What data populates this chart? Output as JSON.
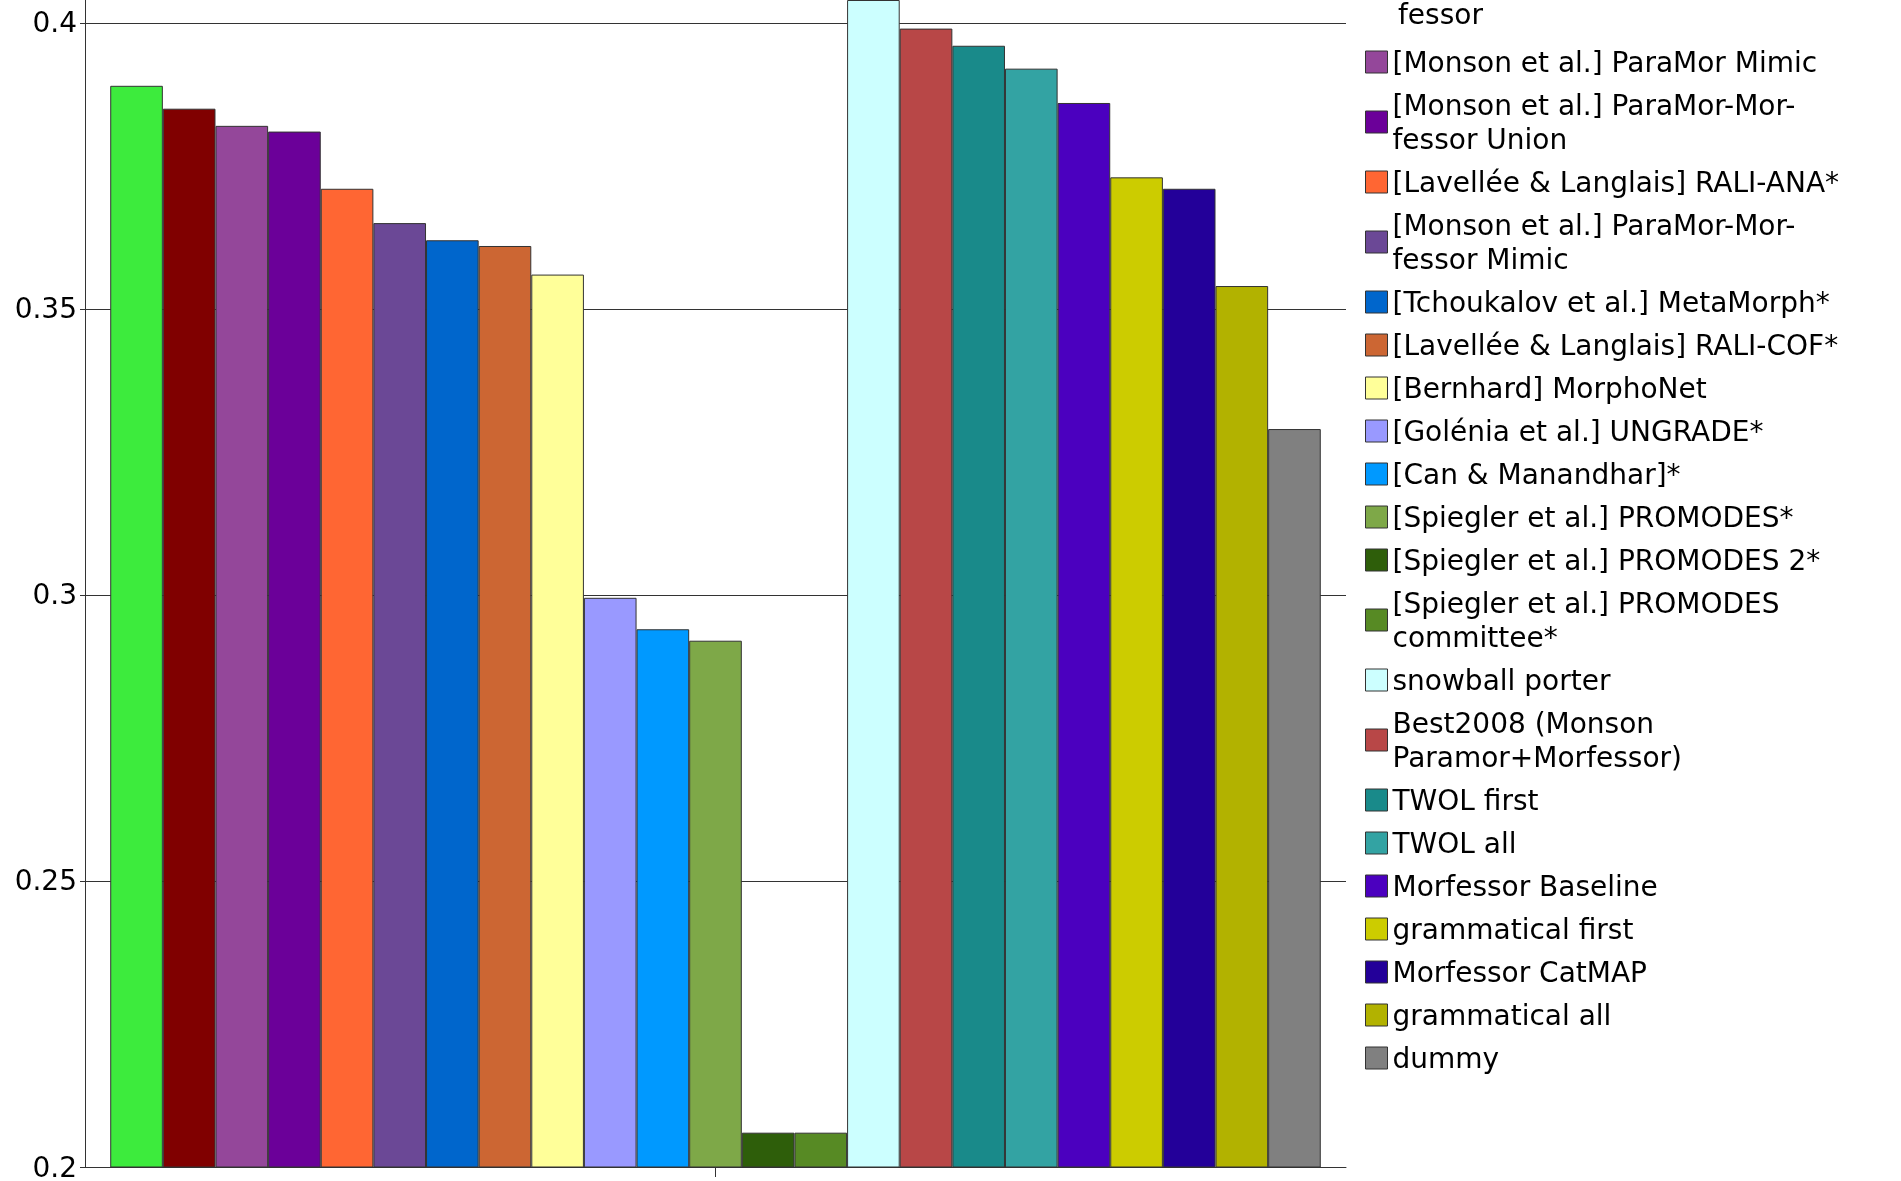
{
  "chart_data": {
    "type": "bar",
    "categories": [
      null
    ],
    "ylim": [
      0.2,
      0.404
    ],
    "yticks": [
      0.2,
      0.25,
      0.3,
      0.35,
      0.4
    ],
    "grid": "y",
    "tick_labels": "y",
    "legend": "right",
    "annotations": [
      "fessor"
    ],
    "series": [
      {
        "color": "#3deb3d",
        "values": [
          0.389
        ]
      },
      {
        "color": "#800000",
        "values": [
          0.385
        ]
      },
      {
        "name": "[Monson et al.] ParaMor Mimic",
        "color": "#94479a",
        "values": [
          0.382
        ]
      },
      {
        "name": "[Monson et al.] ParaMor-Mor-\nfessor Union",
        "color": "#6b0099",
        "values": [
          0.381
        ]
      },
      {
        "name": "[Lavellée & Langlais] RALI-ANA*",
        "color": "#ff6633",
        "values": [
          0.371
        ]
      },
      {
        "name": "[Monson et al.] ParaMor-Mor-\nfessor Mimic",
        "color": "#6b4896",
        "values": [
          0.365
        ]
      },
      {
        "name": "[Tchoukalov et al.] MetaMorph*",
        "color": "#0066cc",
        "values": [
          0.362
        ]
      },
      {
        "name": "[Lavellée & Langlais] RALI-COF*",
        "color": "#cc6633",
        "values": [
          0.361
        ]
      },
      {
        "name": "[Bernhard] MorphoNet",
        "color": "#ffff99",
        "values": [
          0.356
        ]
      },
      {
        "name": "[Golénia et al.] UNGRADE*",
        "color": "#9999ff",
        "values": [
          0.2995
        ]
      },
      {
        "name": "[Can & Manandhar]*",
        "color": "#0099ff",
        "values": [
          0.294
        ]
      },
      {
        "name": "[Spiegler et al.] PROMODES*",
        "color": "#7ea848",
        "values": [
          0.292
        ]
      },
      {
        "name": "[Spiegler et al.] PROMODES 2*",
        "color": "#2e5e0a",
        "values": [
          0.206
        ]
      },
      {
        "name": "[Spiegler et al.] PROMODES\ncommittee*",
        "color": "#578a24",
        "values": [
          0.206
        ]
      },
      {
        "name": "snowball porter",
        "color": "#ccffff",
        "values": [
          0.404
        ]
      },
      {
        "name": "Best2008 (Monson\nParamor+Morfessor)",
        "color": "#b84747",
        "values": [
          0.399
        ]
      },
      {
        "name": "TWOL first",
        "color": "#198a8a",
        "values": [
          0.396
        ]
      },
      {
        "name": "TWOL all",
        "color": "#33a3a3",
        "values": [
          0.392
        ]
      },
      {
        "name": "Morfessor Baseline",
        "color": "#4b00bf",
        "values": [
          0.386
        ]
      },
      {
        "name": "grammatical first",
        "color": "#cccc00",
        "values": [
          0.373
        ]
      },
      {
        "name": "Morfessor CatMAP",
        "color": "#230099",
        "values": [
          0.371
        ]
      },
      {
        "name": "grammatical all",
        "color": "#b2b200",
        "values": [
          0.354
        ]
      },
      {
        "name": "dummy",
        "color": "#808080",
        "values": [
          0.329
        ]
      }
    ]
  }
}
